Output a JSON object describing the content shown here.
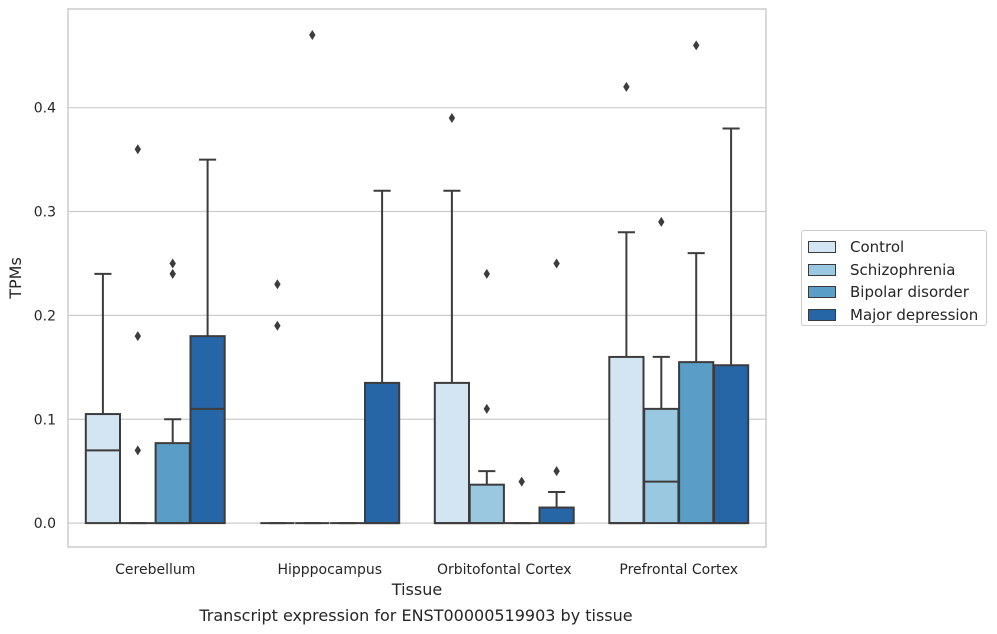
{
  "caption": "Transcript expression for ENST00000519903 by tissue",
  "chart_data": {
    "type": "box",
    "xlabel": "Tissue",
    "ylabel": "TPMs",
    "ylim": [
      -0.023,
      0.495
    ],
    "yticks": [
      0.0,
      0.1,
      0.2,
      0.3,
      0.4
    ],
    "ytick_labels": [
      "0.0",
      "0.1",
      "0.2",
      "0.3",
      "0.4"
    ],
    "grid": "horizontal",
    "legend_position": "right",
    "categories": [
      "Cerebellum",
      "Hipppocampus",
      "Orbitofontal Cortex",
      "Prefrontal Cortex"
    ],
    "series": [
      {
        "name": "Control",
        "color": "#d3e4f3",
        "boxes": [
          {
            "q1": 0.0,
            "median": 0.07,
            "q3": 0.105,
            "whislo": 0.0,
            "whishi": 0.24,
            "fliers": []
          },
          {
            "q1": 0.0,
            "median": 0.0,
            "q3": 0.0,
            "whislo": 0.0,
            "whishi": 0.0,
            "fliers": [
              0.19,
              0.23
            ]
          },
          {
            "q1": 0.0,
            "median": 0.0,
            "q3": 0.135,
            "whislo": 0.0,
            "whishi": 0.32,
            "fliers": [
              0.39
            ]
          },
          {
            "q1": 0.0,
            "median": 0.0,
            "q3": 0.16,
            "whislo": 0.0,
            "whishi": 0.28,
            "fliers": [
              0.42
            ]
          }
        ]
      },
      {
        "name": "Schizophrenia",
        "color": "#9ac8e0",
        "boxes": [
          {
            "q1": 0.0,
            "median": 0.0,
            "q3": 0.0,
            "whislo": 0.0,
            "whishi": 0.0,
            "fliers": [
              0.07,
              0.18,
              0.36
            ]
          },
          {
            "q1": 0.0,
            "median": 0.0,
            "q3": 0.0,
            "whislo": 0.0,
            "whishi": 0.0,
            "fliers": [
              0.47
            ]
          },
          {
            "q1": 0.0,
            "median": 0.0,
            "q3": 0.037,
            "whislo": 0.0,
            "whishi": 0.05,
            "fliers": [
              0.11,
              0.24
            ]
          },
          {
            "q1": 0.0,
            "median": 0.04,
            "q3": 0.11,
            "whislo": 0.0,
            "whishi": 0.16,
            "fliers": [
              0.29
            ]
          }
        ]
      },
      {
        "name": "Bipolar disorder",
        "color": "#5a9ec8",
        "boxes": [
          {
            "q1": 0.0,
            "median": 0.0,
            "q3": 0.077,
            "whislo": 0.0,
            "whishi": 0.1,
            "fliers": [
              0.24,
              0.25
            ]
          },
          {
            "q1": 0.0,
            "median": 0.0,
            "q3": 0.0,
            "whislo": 0.0,
            "whishi": 0.0,
            "fliers": []
          },
          {
            "q1": 0.0,
            "median": 0.0,
            "q3": 0.0,
            "whislo": 0.0,
            "whishi": 0.0,
            "fliers": [
              0.04
            ]
          },
          {
            "q1": 0.0,
            "median": 0.0,
            "q3": 0.155,
            "whislo": 0.0,
            "whishi": 0.26,
            "fliers": [
              0.46
            ]
          }
        ]
      },
      {
        "name": "Major depression",
        "color": "#2666a6",
        "boxes": [
          {
            "q1": 0.0,
            "median": 0.11,
            "q3": 0.18,
            "whislo": 0.0,
            "whishi": 0.35,
            "fliers": []
          },
          {
            "q1": 0.0,
            "median": 0.0,
            "q3": 0.135,
            "whislo": 0.0,
            "whishi": 0.32,
            "fliers": []
          },
          {
            "q1": 0.0,
            "median": 0.0,
            "q3": 0.015,
            "whislo": 0.0,
            "whishi": 0.03,
            "fliers": [
              0.05,
              0.25
            ]
          },
          {
            "q1": 0.0,
            "median": 0.0,
            "q3": 0.152,
            "whislo": 0.0,
            "whishi": 0.38,
            "fliers": []
          }
        ]
      }
    ]
  }
}
